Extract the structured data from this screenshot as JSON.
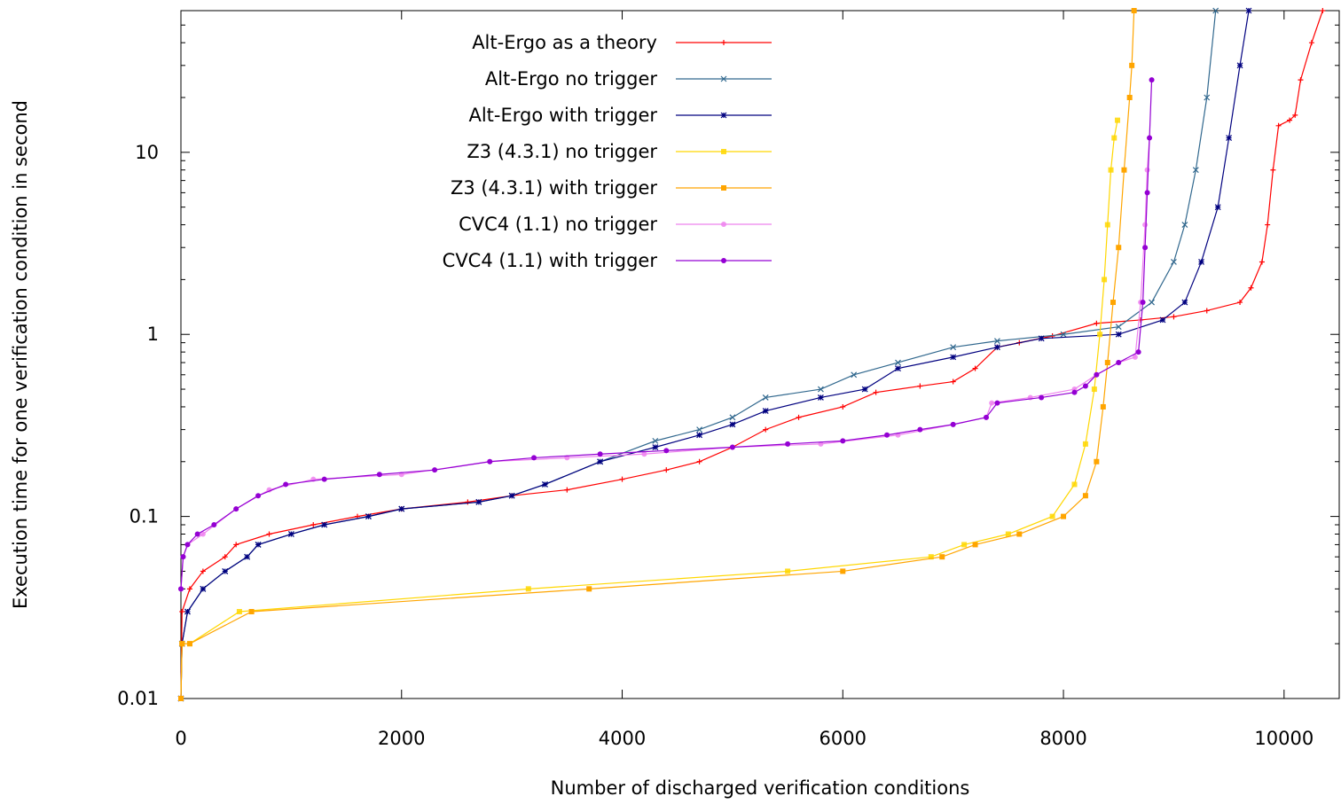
{
  "chart_data": {
    "type": "line",
    "title": "",
    "xlabel": "Number of discharged verification conditions",
    "ylabel": "Execution time for one verification condition in second",
    "x_scale": "linear",
    "y_scale": "log",
    "xlim": [
      0,
      10500
    ],
    "ylim": [
      0.01,
      60
    ],
    "x_ticks": [
      0,
      2000,
      4000,
      6000,
      8000,
      10000
    ],
    "x_tick_labels": [
      "0",
      "2000",
      "4000",
      "6000",
      "8000",
      "10000"
    ],
    "y_ticks": [
      0.01,
      0.1,
      1,
      10
    ],
    "y_tick_labels": [
      "0.01",
      "0.1",
      "1",
      "10"
    ],
    "grid": false,
    "legend_position": "top-left",
    "series": [
      {
        "name": "Alt-Ergo as a theory",
        "color": "#ff0000",
        "marker": "plus",
        "points": [
          [
            0,
            0.01
          ],
          [
            10,
            0.03
          ],
          [
            80,
            0.04
          ],
          [
            200,
            0.05
          ],
          [
            400,
            0.06
          ],
          [
            500,
            0.07
          ],
          [
            800,
            0.08
          ],
          [
            1200,
            0.09
          ],
          [
            1600,
            0.1
          ],
          [
            2000,
            0.11
          ],
          [
            2600,
            0.12
          ],
          [
            3000,
            0.13
          ],
          [
            3500,
            0.14
          ],
          [
            4000,
            0.16
          ],
          [
            4400,
            0.18
          ],
          [
            4700,
            0.2
          ],
          [
            5000,
            0.24
          ],
          [
            5300,
            0.3
          ],
          [
            5600,
            0.35
          ],
          [
            6000,
            0.4
          ],
          [
            6300,
            0.48
          ],
          [
            6700,
            0.52
          ],
          [
            7000,
            0.55
          ],
          [
            7200,
            0.65
          ],
          [
            7400,
            0.85
          ],
          [
            7600,
            0.9
          ],
          [
            7900,
            0.98
          ],
          [
            8300,
            1.15
          ],
          [
            8700,
            1.2
          ],
          [
            9000,
            1.25
          ],
          [
            9300,
            1.35
          ],
          [
            9600,
            1.5
          ],
          [
            9700,
            1.8
          ],
          [
            9800,
            2.5
          ],
          [
            9850,
            4
          ],
          [
            9900,
            8
          ],
          [
            9950,
            14
          ],
          [
            10050,
            15
          ],
          [
            10100,
            16
          ],
          [
            10150,
            25
          ],
          [
            10250,
            40
          ],
          [
            10350,
            60
          ]
        ]
      },
      {
        "name": "Alt-Ergo no trigger",
        "color": "#31688e",
        "marker": "cross",
        "points": [
          [
            0,
            0.01
          ],
          [
            10,
            0.02
          ],
          [
            60,
            0.03
          ],
          [
            200,
            0.04
          ],
          [
            400,
            0.05
          ],
          [
            600,
            0.06
          ],
          [
            700,
            0.07
          ],
          [
            1000,
            0.08
          ],
          [
            1300,
            0.09
          ],
          [
            1700,
            0.1
          ],
          [
            2000,
            0.11
          ],
          [
            2700,
            0.12
          ],
          [
            3000,
            0.13
          ],
          [
            3300,
            0.15
          ],
          [
            3800,
            0.2
          ],
          [
            4300,
            0.26
          ],
          [
            4700,
            0.3
          ],
          [
            5000,
            0.35
          ],
          [
            5300,
            0.45
          ],
          [
            5800,
            0.5
          ],
          [
            6100,
            0.6
          ],
          [
            6500,
            0.7
          ],
          [
            7000,
            0.85
          ],
          [
            7400,
            0.92
          ],
          [
            8000,
            1.0
          ],
          [
            8500,
            1.1
          ],
          [
            8800,
            1.5
          ],
          [
            9000,
            2.5
          ],
          [
            9100,
            4
          ],
          [
            9200,
            8
          ],
          [
            9300,
            20
          ],
          [
            9380,
            60
          ]
        ]
      },
      {
        "name": "Alt-Ergo with trigger",
        "color": "#00007f",
        "marker": "star",
        "points": [
          [
            0,
            0.01
          ],
          [
            10,
            0.02
          ],
          [
            60,
            0.03
          ],
          [
            200,
            0.04
          ],
          [
            400,
            0.05
          ],
          [
            600,
            0.06
          ],
          [
            700,
            0.07
          ],
          [
            1000,
            0.08
          ],
          [
            1300,
            0.09
          ],
          [
            1700,
            0.1
          ],
          [
            2000,
            0.11
          ],
          [
            2700,
            0.12
          ],
          [
            3000,
            0.13
          ],
          [
            3300,
            0.15
          ],
          [
            3800,
            0.2
          ],
          [
            4300,
            0.24
          ],
          [
            4700,
            0.28
          ],
          [
            5000,
            0.32
          ],
          [
            5300,
            0.38
          ],
          [
            5800,
            0.45
          ],
          [
            6200,
            0.5
          ],
          [
            6500,
            0.65
          ],
          [
            7000,
            0.75
          ],
          [
            7400,
            0.85
          ],
          [
            7800,
            0.95
          ],
          [
            8500,
            1.0
          ],
          [
            8900,
            1.2
          ],
          [
            9100,
            1.5
          ],
          [
            9250,
            2.5
          ],
          [
            9400,
            5
          ],
          [
            9500,
            12
          ],
          [
            9600,
            30
          ],
          [
            9680,
            60
          ]
        ]
      },
      {
        "name": "Z3 (4.3.1) no trigger",
        "color": "#ffd700",
        "marker": "square",
        "points": [
          [
            0,
            0.01
          ],
          [
            10,
            0.02
          ],
          [
            80,
            0.02
          ],
          [
            530,
            0.03
          ],
          [
            3150,
            0.04
          ],
          [
            5500,
            0.05
          ],
          [
            6800,
            0.06
          ],
          [
            7100,
            0.07
          ],
          [
            7500,
            0.08
          ],
          [
            7900,
            0.1
          ],
          [
            8100,
            0.15
          ],
          [
            8200,
            0.25
          ],
          [
            8280,
            0.5
          ],
          [
            8330,
            1
          ],
          [
            8370,
            2
          ],
          [
            8400,
            4
          ],
          [
            8430,
            8
          ],
          [
            8460,
            12
          ],
          [
            8490,
            15
          ]
        ]
      },
      {
        "name": "Z3 (4.3.1) with trigger",
        "color": "#ffa500",
        "marker": "square-filled",
        "points": [
          [
            0,
            0.01
          ],
          [
            10,
            0.02
          ],
          [
            80,
            0.02
          ],
          [
            640,
            0.03
          ],
          [
            3700,
            0.04
          ],
          [
            6000,
            0.05
          ],
          [
            6900,
            0.06
          ],
          [
            7200,
            0.07
          ],
          [
            7600,
            0.08
          ],
          [
            8000,
            0.1
          ],
          [
            8200,
            0.13
          ],
          [
            8300,
            0.2
          ],
          [
            8360,
            0.4
          ],
          [
            8400,
            0.7
          ],
          [
            8450,
            1.5
          ],
          [
            8500,
            3
          ],
          [
            8550,
            8
          ],
          [
            8600,
            20
          ],
          [
            8620,
            30
          ],
          [
            8640,
            60
          ]
        ]
      },
      {
        "name": "CVC4 (1.1) no trigger",
        "color": "#ee82ee",
        "marker": "circle",
        "points": [
          [
            0,
            0.04
          ],
          [
            20,
            0.06
          ],
          [
            60,
            0.07
          ],
          [
            200,
            0.08
          ],
          [
            500,
            0.11
          ],
          [
            800,
            0.14
          ],
          [
            1200,
            0.16
          ],
          [
            2000,
            0.17
          ],
          [
            2800,
            0.2
          ],
          [
            3500,
            0.21
          ],
          [
            4200,
            0.22
          ],
          [
            5000,
            0.24
          ],
          [
            5800,
            0.25
          ],
          [
            6500,
            0.28
          ],
          [
            7000,
            0.32
          ],
          [
            7300,
            0.35
          ],
          [
            7350,
            0.42
          ],
          [
            7700,
            0.45
          ],
          [
            8100,
            0.5
          ],
          [
            8300,
            0.6
          ],
          [
            8500,
            0.7
          ],
          [
            8650,
            0.75
          ],
          [
            8700,
            1.5
          ],
          [
            8740,
            4
          ],
          [
            8760,
            8
          ],
          [
            8780,
            12
          ]
        ]
      },
      {
        "name": "CVC4 (1.1) with trigger",
        "color": "#9400d3",
        "marker": "circle-filled",
        "points": [
          [
            0,
            0.04
          ],
          [
            20,
            0.06
          ],
          [
            60,
            0.07
          ],
          [
            150,
            0.08
          ],
          [
            300,
            0.09
          ],
          [
            500,
            0.11
          ],
          [
            700,
            0.13
          ],
          [
            950,
            0.15
          ],
          [
            1300,
            0.16
          ],
          [
            1800,
            0.17
          ],
          [
            2300,
            0.18
          ],
          [
            2800,
            0.2
          ],
          [
            3200,
            0.21
          ],
          [
            3800,
            0.22
          ],
          [
            4400,
            0.23
          ],
          [
            5000,
            0.24
          ],
          [
            5500,
            0.25
          ],
          [
            6000,
            0.26
          ],
          [
            6400,
            0.28
          ],
          [
            6700,
            0.3
          ],
          [
            7000,
            0.32
          ],
          [
            7300,
            0.35
          ],
          [
            7400,
            0.42
          ],
          [
            7800,
            0.45
          ],
          [
            8100,
            0.48
          ],
          [
            8200,
            0.52
          ],
          [
            8300,
            0.6
          ],
          [
            8500,
            0.7
          ],
          [
            8680,
            0.8
          ],
          [
            8720,
            1.5
          ],
          [
            8740,
            3
          ],
          [
            8760,
            6
          ],
          [
            8780,
            12
          ],
          [
            8800,
            25
          ]
        ]
      }
    ]
  }
}
